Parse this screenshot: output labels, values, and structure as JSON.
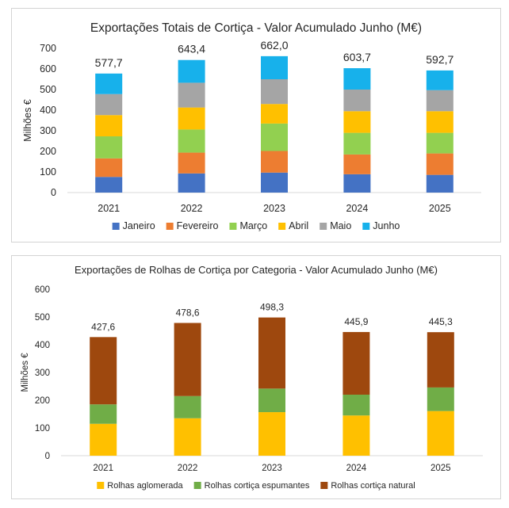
{
  "charts": [
    {
      "id": "c1",
      "chart_data": {
        "type": "bar",
        "stacked": true,
        "title": "Exportações Totais de Cortiça - Valor Acumulado Junho (M€)",
        "ylabel": "Milhões €",
        "xlabel": "",
        "ylim": [
          0,
          700
        ],
        "yticks": [
          "0",
          "100",
          "200",
          "300",
          "400",
          "500",
          "600",
          "700"
        ],
        "categories": [
          "2021",
          "2022",
          "2023",
          "2024",
          "2025"
        ],
        "totals": [
          "577,7",
          "643,4",
          "662,0",
          "603,7",
          "592,7"
        ],
        "legend_position": "bottom",
        "grid": false,
        "series": [
          {
            "name": "Janeiro",
            "color": "#4472C4",
            "values": [
              76,
              93,
              97,
              89,
              86
            ]
          },
          {
            "name": "Fevereiro",
            "color": "#ED7D31",
            "values": [
              90,
              101,
              105,
              96,
              104
            ]
          },
          {
            "name": "Março",
            "color": "#92D050",
            "values": [
              107,
              112,
              133,
              105,
              100
            ]
          },
          {
            "name": "Abril",
            "color": "#FFC000",
            "values": [
              103,
              107,
              95,
              105,
              105
            ]
          },
          {
            "name": "Maio",
            "color": "#A5A5A5",
            "values": [
              102,
              120,
              120,
              105,
              102
            ]
          },
          {
            "name": "Junho",
            "color": "#17B1EB",
            "values": [
              99.7,
              110.4,
              112,
              103.7,
              95.7
            ]
          }
        ]
      }
    },
    {
      "id": "c2",
      "chart_data": {
        "type": "bar",
        "stacked": true,
        "title": "Exportações de Rolhas de Cortiça por Categoria - Valor Acumulado Junho (M€)",
        "ylabel": "Milhões €",
        "xlabel": "",
        "ylim": [
          0,
          600
        ],
        "yticks": [
          "0",
          "100",
          "200",
          "300",
          "400",
          "500",
          "600"
        ],
        "categories": [
          "2021",
          "2022",
          "2023",
          "2024",
          "2025"
        ],
        "totals": [
          "427,6",
          "478,6",
          "498,3",
          "445,9",
          "445,3"
        ],
        "legend_position": "bottom",
        "grid": false,
        "series": [
          {
            "name": "Rolhas aglomerada",
            "color": "#FFC000",
            "values": [
              115,
              135,
              157,
              145,
              161
            ]
          },
          {
            "name": "Rolhas cortiça espumantes",
            "color": "#70AD47",
            "values": [
              70,
              80,
              85,
              75,
              85
            ]
          },
          {
            "name": "Rolhas cortiça natural",
            "color": "#9E480E",
            "values": [
              242.6,
              263.6,
              256.3,
              225.9,
              199.3
            ]
          }
        ]
      }
    }
  ]
}
